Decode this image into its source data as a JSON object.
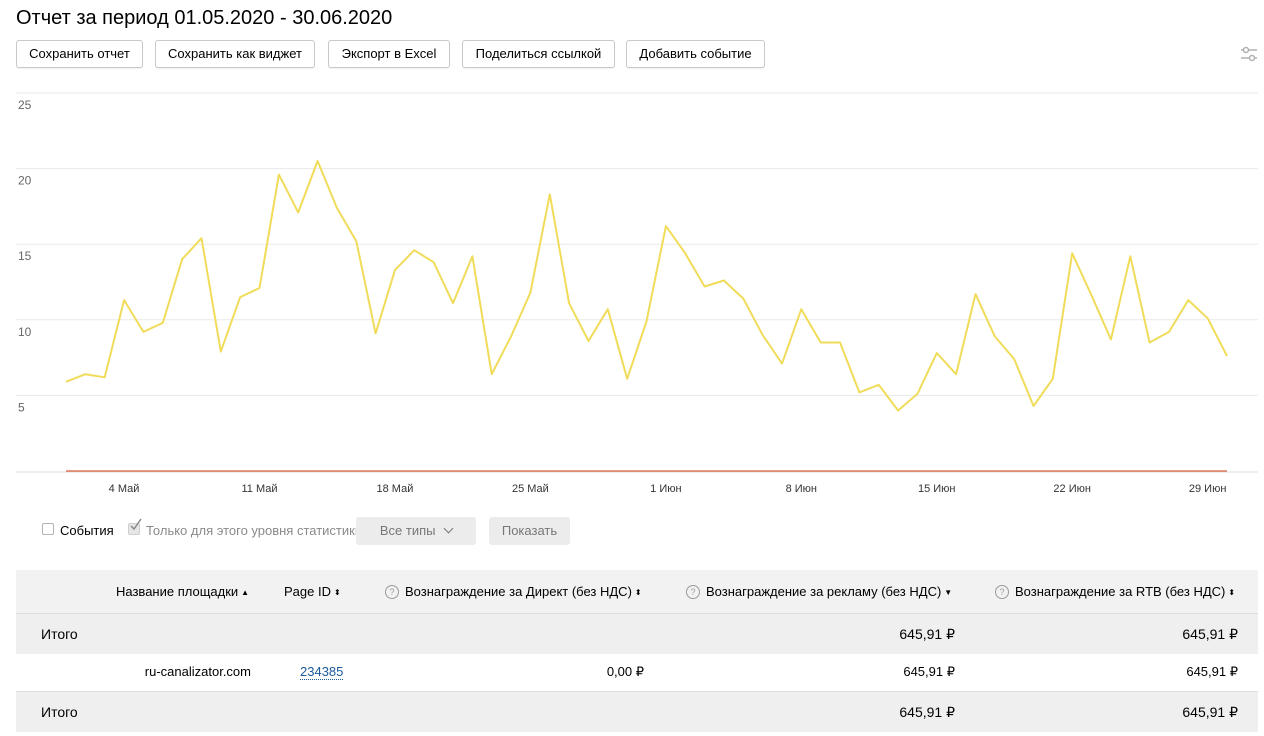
{
  "header": {
    "title": "Отчет за период 01.05.2020 - 30.06.2020"
  },
  "toolbar": {
    "save_report": "Сохранить отчет",
    "save_widget": "Сохранить как виджет",
    "export_excel": "Экспорт в Excel",
    "share_link": "Поделиться ссылкой",
    "add_event": "Добавить событие",
    "settings_icon": "sliders-icon"
  },
  "chart_data": {
    "type": "line",
    "x_tick_labels": [
      "4 Май",
      "11 Май",
      "18 Май",
      "25 Май",
      "1 Июн",
      "8 Июн",
      "15 Июн",
      "22 Июн",
      "29 Июн"
    ],
    "y_ticks": [
      5,
      10,
      15,
      20,
      25
    ],
    "ylim": [
      0,
      25
    ],
    "grid": true,
    "series": [
      {
        "color": "#f0dc5a",
        "values": [
          5.9,
          6.4,
          6.2,
          11.3,
          9.2,
          9.8,
          14.0,
          15.4,
          7.9,
          11.5,
          12.1,
          19.6,
          17.1,
          20.5,
          17.4,
          15.2,
          9.1,
          13.3,
          14.6,
          13.8,
          11.1,
          14.2,
          6.4,
          8.9,
          11.8,
          18.3,
          11.1,
          8.6,
          10.7,
          6.1,
          9.9,
          16.2,
          14.4,
          12.2,
          12.6,
          11.4,
          9.0,
          7.1,
          10.7,
          8.5,
          8.5,
          5.2,
          5.7,
          4.0,
          5.1,
          7.8,
          6.4,
          11.7,
          8.9,
          7.4,
          4.3,
          6.1,
          14.4,
          11.6,
          8.7,
          14.2,
          8.5,
          9.2,
          11.3,
          10.1,
          7.6
        ]
      },
      {
        "color": "#d9603a",
        "values": [
          0,
          0
        ]
      }
    ]
  },
  "controls": {
    "events_label": "События",
    "only_level_label": "Только для этого уровня статистики",
    "all_types": "Все типы",
    "show": "Показать"
  },
  "table": {
    "headers": {
      "site_name": "Название площадки",
      "page_id": "Page ID",
      "direct_reward": "Вознаграждение за Директ (без НДС)",
      "ad_reward": "Вознаграждение за рекламу (без НДС)",
      "rtb_reward": "Вознаграждение за RTB (без НДС)"
    },
    "total_top": {
      "label": "Итого",
      "ad_reward": "645,91 ₽",
      "rtb_reward": "645,91 ₽"
    },
    "rows": [
      {
        "site_name": "ru-canalizator.com",
        "page_id": "234385",
        "direct_reward": "0,00 ₽",
        "ad_reward": "645,91 ₽",
        "rtb_reward": "645,91 ₽"
      }
    ],
    "total_bottom": {
      "label": "Итого",
      "ad_reward": "645,91 ₽",
      "rtb_reward": "645,91 ₽"
    }
  }
}
